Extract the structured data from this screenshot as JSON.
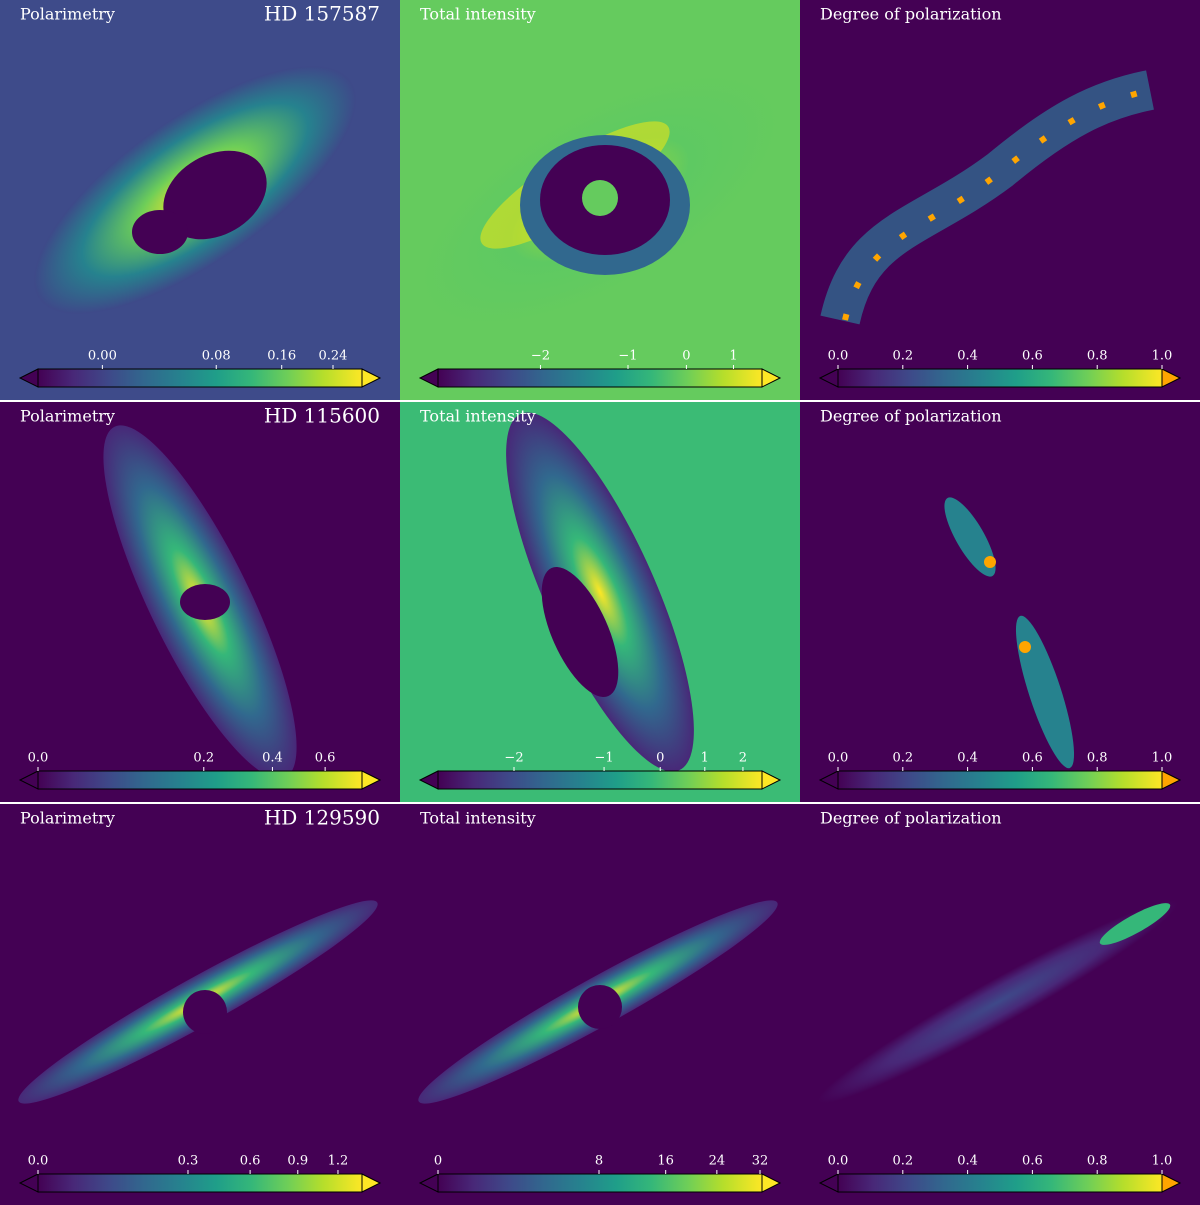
{
  "chart_data": [
    {
      "type": "hexbin",
      "title": "Polarimetry",
      "annotation": "HD 157587",
      "background": "#3e4b8a",
      "colorbar": {
        "lim": [
          -0.012,
          0.292
        ],
        "stretch": "sqrt",
        "over_color": "#fde725",
        "ticks": [
          {
            "value": 0,
            "label": "0.00"
          },
          0.08,
          0.16,
          0.24
        ]
      }
    },
    {
      "type": "hexbin",
      "title": "Total intensity",
      "background": "#65cb5e",
      "colorbar": {
        "lim": [
          -2.41,
          1.69
        ],
        "stretch": "sqrt",
        "over_color": "#fde725",
        "ticks": [
          {
            "value": -2,
            "label": "−2"
          },
          {
            "value": -1,
            "label": "−1"
          },
          0,
          1
        ]
      }
    },
    {
      "type": "hexbin",
      "title": "Degree of polarization",
      "background": "#440154",
      "colorbar": {
        "lim": [
          0,
          1
        ],
        "stretch": "linear",
        "over_color": "#ffa500",
        "ticks": [
          {
            "value": 0,
            "label": "0.0"
          },
          0.2,
          0.4,
          0.6,
          0.8,
          {
            "value": 1,
            "label": "1.0"
          }
        ]
      }
    },
    {
      "type": "hexbin",
      "title": "Polarimetry",
      "annotation": "HD 115600",
      "background": "#440154",
      "colorbar": {
        "lim": [
          0,
          0.764
        ],
        "stretch": "sqrt",
        "over_color": "#fde725",
        "ticks": [
          {
            "value": 0,
            "label": "0.0"
          },
          0.2,
          0.4,
          0.6
        ]
      }
    },
    {
      "type": "hexbin",
      "title": "Total intensity",
      "background": "#3bbb75",
      "colorbar": {
        "lim": [
          -2.265,
          2.55
        ],
        "stretch": "sqrt",
        "over_color": "#fde725",
        "ticks": [
          {
            "value": -2,
            "label": "−2"
          },
          {
            "value": -1,
            "label": "−1"
          },
          0,
          1,
          2
        ]
      }
    },
    {
      "type": "hexbin",
      "title": "Degree of polarization",
      "background": "#440154",
      "colorbar": {
        "lim": [
          0,
          1
        ],
        "stretch": "linear",
        "over_color": "#ffa500",
        "ticks": [
          {
            "value": 0,
            "label": "0.0"
          },
          0.2,
          0.4,
          0.6,
          0.8,
          {
            "value": 1,
            "label": "1.0"
          }
        ]
      }
    },
    {
      "type": "hexbin",
      "title": "Polarimetry",
      "annotation": "HD 129590",
      "background": "#440154",
      "colorbar": {
        "lim": [
          0,
          1.4
        ],
        "stretch": "sqrt",
        "over_color": "#fde725",
        "ticks": [
          {
            "value": 0,
            "label": "0.0"
          },
          0.3,
          0.6,
          0.9,
          1.2
        ]
      }
    },
    {
      "type": "hexbin",
      "title": "Total intensity",
      "background": "#440154",
      "colorbar": {
        "lim": [
          0,
          32.4
        ],
        "stretch": "sqrt",
        "over_color": "#fde725",
        "ticks": [
          0,
          8,
          16,
          24,
          32
        ]
      }
    },
    {
      "type": "hexbin",
      "title": "Degree of polarization",
      "background": "#440154",
      "colorbar": {
        "lim": [
          0,
          1
        ],
        "stretch": "linear",
        "over_color": "#ffa500",
        "ticks": [
          {
            "value": 0,
            "label": "0.0"
          },
          0.2,
          0.4,
          0.6,
          0.8,
          {
            "value": 1,
            "label": "1.0"
          }
        ]
      }
    }
  ]
}
